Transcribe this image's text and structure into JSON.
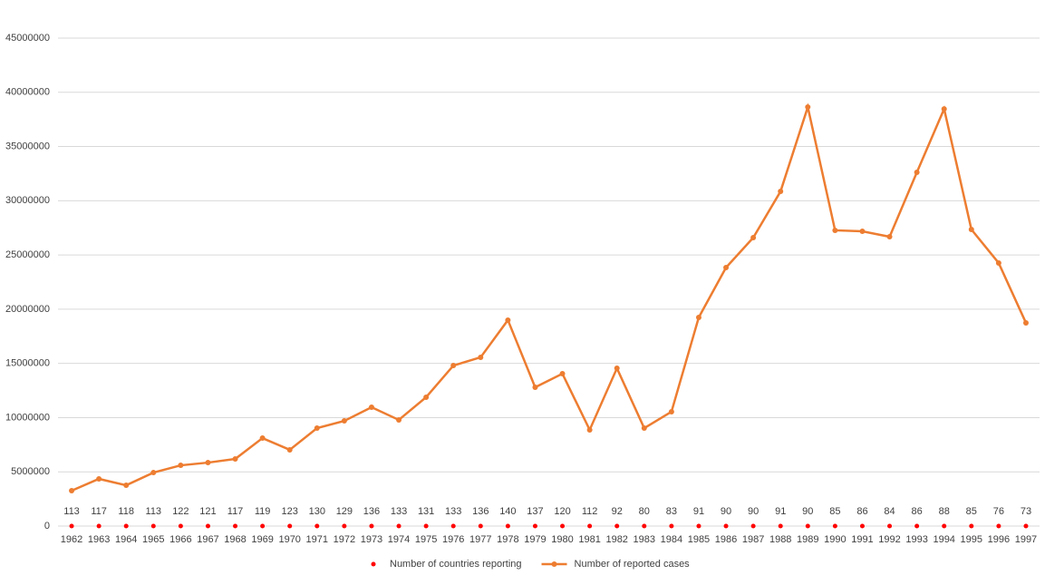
{
  "chart_data": {
    "type": "line",
    "categories": [
      "1962",
      "1963",
      "1964",
      "1965",
      "1966",
      "1967",
      "1968",
      "1969",
      "1970",
      "1971",
      "1972",
      "1973",
      "1974",
      "1975",
      "1976",
      "1977",
      "1978",
      "1979",
      "1980",
      "1981",
      "1982",
      "1983",
      "1984",
      "1985",
      "1986",
      "1987",
      "1988",
      "1989",
      "1990",
      "1991",
      "1992",
      "1993",
      "1994",
      "1995",
      "1996",
      "1997"
    ],
    "series": [
      {
        "name": "Number of countries reporting",
        "color": "#ff0000",
        "marker_only": true,
        "values": [
          113,
          117,
          118,
          113,
          122,
          121,
          117,
          119,
          123,
          130,
          129,
          136,
          133,
          131,
          133,
          136,
          140,
          137,
          120,
          112,
          92,
          80,
          83,
          91,
          90,
          90,
          91,
          90,
          85,
          86,
          84,
          86,
          88,
          85,
          76,
          73
        ]
      },
      {
        "name": "Number of reported cases",
        "color": "#ed7d31",
        "marker_only": false,
        "values": [
          3260000,
          4350000,
          3760000,
          4930000,
          5600000,
          5850000,
          6190000,
          8110000,
          7030000,
          9030000,
          9700000,
          10960000,
          9790000,
          11880000,
          14800000,
          15560000,
          18990000,
          12800000,
          14050000,
          8870000,
          14550000,
          9030000,
          10540000,
          19240000,
          23840000,
          26600000,
          30860000,
          38640000,
          27270000,
          27180000,
          26680000,
          32620000,
          38470000,
          27350000,
          24260000,
          18740000
        ]
      }
    ],
    "ylim": [
      0,
      45000000
    ],
    "yticks": [
      0,
      5000000,
      10000000,
      15000000,
      20000000,
      25000000,
      30000000,
      35000000,
      40000000,
      45000000
    ],
    "grid": true,
    "legend": "bottom"
  }
}
